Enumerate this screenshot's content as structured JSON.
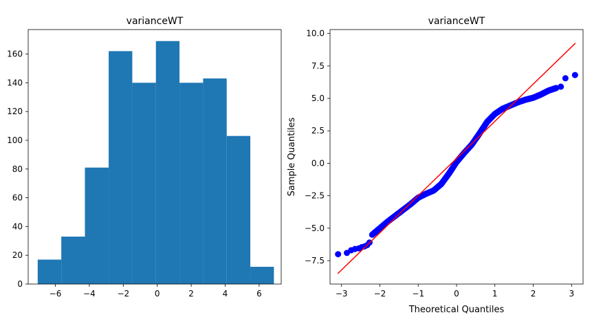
{
  "chart_data": [
    {
      "type": "bar",
      "title": "varianceWT",
      "xlabel": "",
      "ylabel": "",
      "xlim": [
        -7.6,
        7.3
      ],
      "ylim": [
        0,
        177
      ],
      "bar_color": "#1f77b4",
      "grid": false,
      "bins": [
        {
          "x0": -7.04,
          "x1": -5.65,
          "count": 17
        },
        {
          "x0": -5.65,
          "x1": -4.26,
          "count": 33
        },
        {
          "x0": -4.26,
          "x1": -2.86,
          "count": 81
        },
        {
          "x0": -2.86,
          "x1": -1.47,
          "count": 162
        },
        {
          "x0": -1.47,
          "x1": -0.08,
          "count": 140
        },
        {
          "x0": -0.08,
          "x1": 1.31,
          "count": 169
        },
        {
          "x0": 1.31,
          "x1": 2.7,
          "count": 140
        },
        {
          "x0": 2.7,
          "x1": 4.09,
          "count": 143
        },
        {
          "x0": 4.09,
          "x1": 5.48,
          "count": 103
        },
        {
          "x0": 5.48,
          "x1": 6.87,
          "count": 12
        }
      ],
      "xticks": [
        -6,
        -4,
        -2,
        0,
        2,
        4,
        6
      ],
      "xtick_labels": [
        "−6",
        "−4",
        "−2",
        "0",
        "2",
        "4",
        "6"
      ],
      "yticks": [
        0,
        20,
        40,
        60,
        80,
        100,
        120,
        140,
        160
      ],
      "ytick_labels": [
        "0",
        "20",
        "40",
        "60",
        "80",
        "100",
        "120",
        "140",
        "160"
      ]
    },
    {
      "type": "scatter",
      "title": "varianceWT",
      "xlabel": "Theoretical Quantiles",
      "ylabel": "Sample Quantiles",
      "xlim": [
        -3.3,
        3.3
      ],
      "ylim": [
        -9.3,
        10.3
      ],
      "point_color": "#0000ff",
      "line_color": "#ff0000",
      "grid": false,
      "reference_line": {
        "x": [
          -3.1,
          3.1
        ],
        "y": [
          -8.5,
          9.25
        ]
      },
      "quantile_curve": {
        "x": [
          -2.2,
          -2.0,
          -1.8,
          -1.6,
          -1.4,
          -1.2,
          -1.0,
          -0.8,
          -0.6,
          -0.4,
          -0.2,
          0.0,
          0.2,
          0.4,
          0.6,
          0.8,
          1.0,
          1.2,
          1.4,
          1.6,
          1.8,
          2.0,
          2.2,
          2.4,
          2.6
        ],
        "y": [
          -5.5,
          -5.0,
          -4.5,
          -4.05,
          -3.6,
          -3.15,
          -2.65,
          -2.35,
          -2.1,
          -1.6,
          -0.8,
          0.1,
          0.8,
          1.45,
          2.3,
          3.2,
          3.8,
          4.2,
          4.45,
          4.7,
          4.9,
          5.05,
          5.3,
          5.6,
          5.8
        ]
      },
      "tail_points": [
        {
          "x": -3.09,
          "y": -7.0
        },
        {
          "x": -2.86,
          "y": -6.9
        },
        {
          "x": -2.75,
          "y": -6.7
        },
        {
          "x": -2.65,
          "y": -6.6
        },
        {
          "x": -2.55,
          "y": -6.55
        },
        {
          "x": -2.47,
          "y": -6.45
        },
        {
          "x": -2.4,
          "y": -6.4
        },
        {
          "x": -2.33,
          "y": -6.3
        },
        {
          "x": -2.27,
          "y": -6.1
        },
        {
          "x": 2.72,
          "y": 5.9
        },
        {
          "x": 2.84,
          "y": 6.55
        },
        {
          "x": 3.09,
          "y": 6.8
        }
      ],
      "xticks": [
        -3,
        -2,
        -1,
        0,
        1,
        2,
        3
      ],
      "xtick_labels": [
        "−3",
        "−2",
        "−1",
        "0",
        "1",
        "2",
        "3"
      ],
      "yticks": [
        -7.5,
        -5.0,
        -2.5,
        0.0,
        2.5,
        5.0,
        7.5,
        10.0
      ],
      "ytick_labels": [
        "−7.5",
        "−5.0",
        "−2.5",
        "0.0",
        "2.5",
        "5.0",
        "7.5",
        "10.0"
      ]
    }
  ]
}
